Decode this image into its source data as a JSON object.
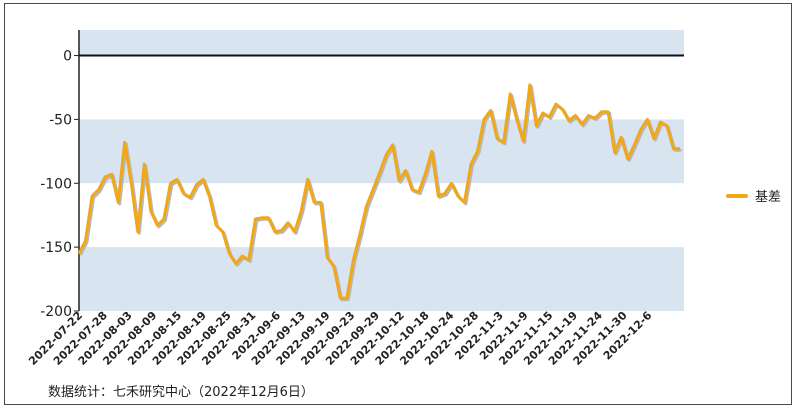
{
  "chart_data": {
    "type": "line",
    "title": "",
    "xlabel": "",
    "ylabel": "",
    "ylim": [
      -200,
      20
    ],
    "yticks": [
      0,
      -50,
      -100,
      -150,
      -200
    ],
    "y_tick_labels": [
      "0",
      "-50",
      "-100",
      "-150",
      "-200"
    ],
    "x_tick_labels": [
      "2022-07-22",
      "2022-07-28",
      "2022-08-03",
      "2022-08-09",
      "2022-08-15",
      "2022-08-19",
      "2022-08-25",
      "2022-08-31",
      "2022-09-6",
      "2022-09-13",
      "2022-09-19",
      "2022-09-23",
      "2022-09-29",
      "2022-10-12",
      "2022-10-18",
      "2022-10-24",
      "2022-10-28",
      "2022-11-3",
      "2022-11-9",
      "2022-11-15",
      "2022-11-19",
      "2022-11-24",
      "2022-11-30",
      "2022-12-6"
    ],
    "grid": "alternating horizontal bands",
    "legend_position": "right",
    "series": [
      {
        "name": "基差",
        "color": "#f0a818",
        "values": [
          -155,
          -145,
          -110,
          -105,
          -95,
          -93,
          -115,
          -68,
          -100,
          -138,
          -85,
          -122,
          -133,
          -128,
          -100,
          -97,
          -108,
          -111,
          -101,
          -97,
          -111,
          -133,
          -138,
          -155,
          -163,
          -157,
          -160,
          -128,
          -127,
          -127,
          -138,
          -137,
          -131,
          -138,
          -122,
          -97,
          -115,
          -115,
          -158,
          -165,
          -190,
          -190,
          -160,
          -140,
          -118,
          -105,
          -92,
          -78,
          -70,
          -98,
          -90,
          -105,
          -107,
          -93,
          -75,
          -110,
          -108,
          -100,
          -110,
          -115,
          -85,
          -75,
          -50,
          -43,
          -65,
          -68,
          -30,
          -50,
          -67,
          -23,
          -55,
          -45,
          -48,
          -38,
          -42,
          -51,
          -47,
          -54,
          -47,
          -49,
          -44,
          -44,
          -76,
          -64,
          -81,
          -70,
          -58,
          -50,
          -65,
          -52,
          -55,
          -73,
          -73
        ]
      }
    ]
  },
  "legend": {
    "label": "基差"
  },
  "footer": {
    "source": "数据统计：七禾研究中心（2022年12月6日）"
  }
}
